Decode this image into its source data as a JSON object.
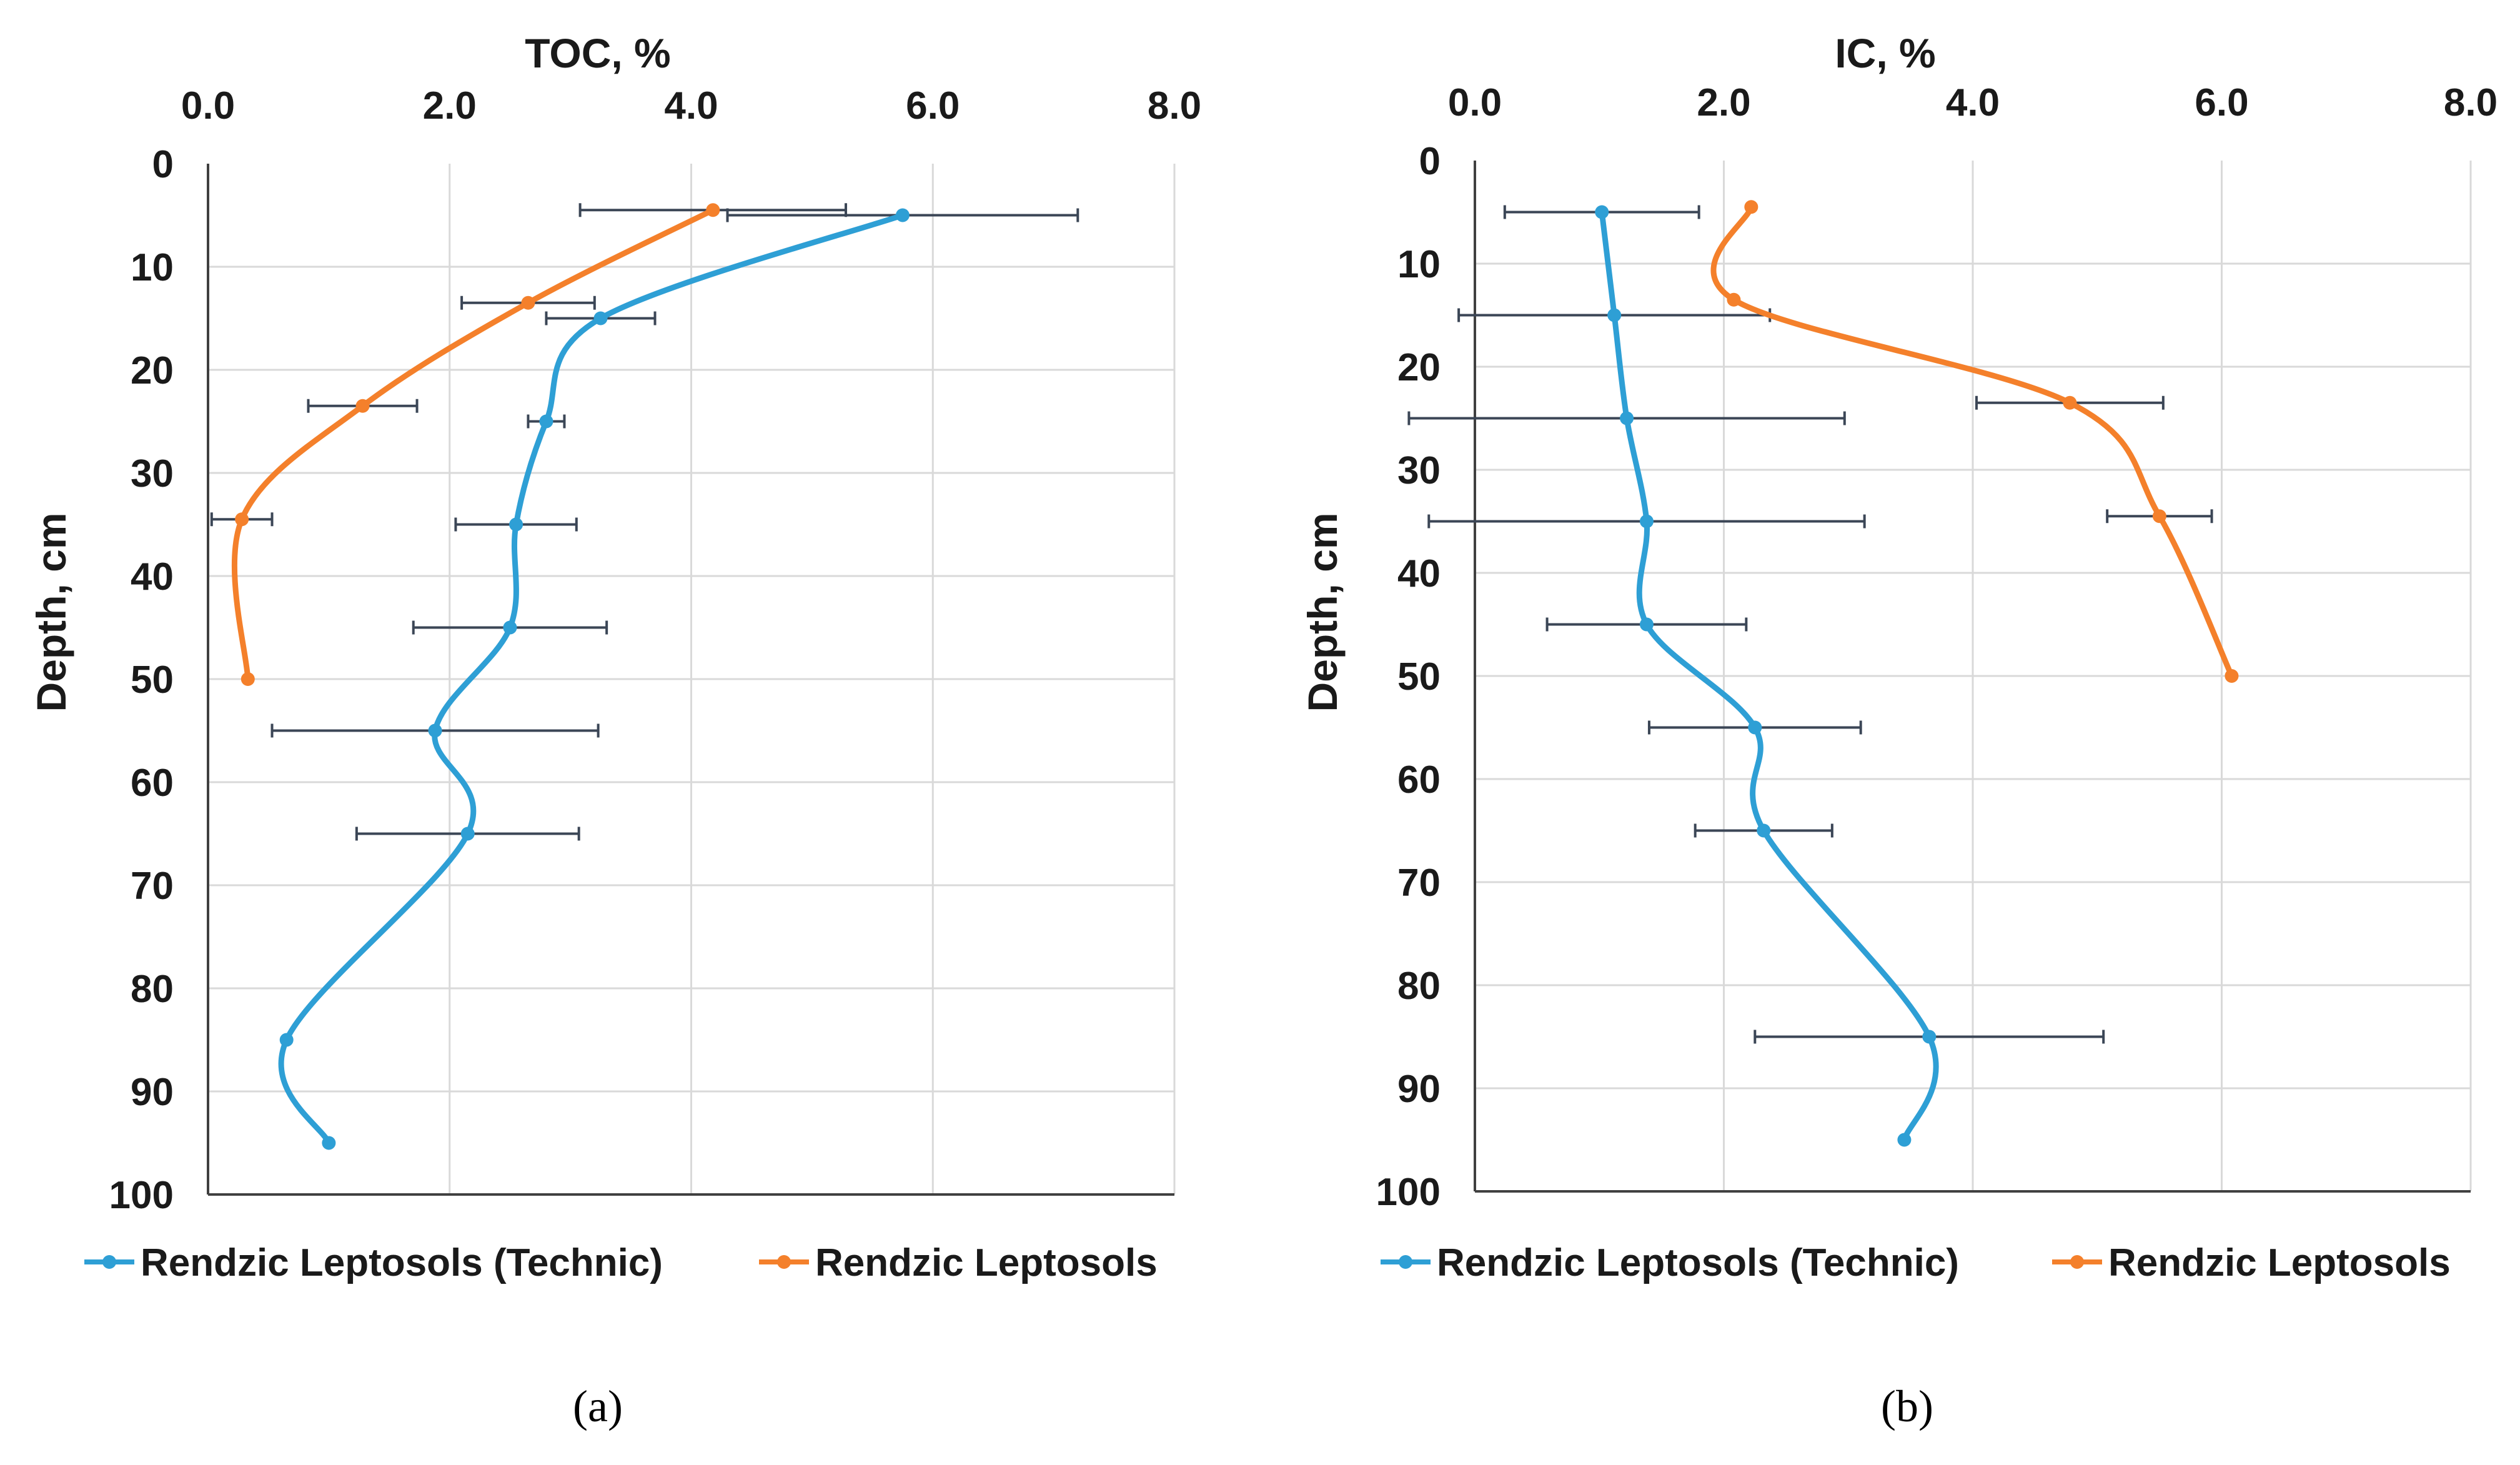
{
  "colors": {
    "technic": "#2e9fd5",
    "rendzic": "#f4802b",
    "error": "#3b4656"
  },
  "chart_data": [
    {
      "type": "line",
      "panel": "a",
      "caption": "(a)",
      "title": "TOC, %",
      "xlabel": "TOC, %",
      "ylabel": "Depth, cm",
      "xlim": [
        0,
        8
      ],
      "ylim": [
        0,
        100
      ],
      "x_ticks": [
        "0.0",
        "2.0",
        "4.0",
        "6.0",
        "8.0"
      ],
      "y_ticks": [
        "0",
        "10",
        "20",
        "30",
        "40",
        "50",
        "60",
        "70",
        "80",
        "90",
        "100"
      ],
      "grid": true,
      "legend": "bottom",
      "series": [
        {
          "name": "Rendzic Leptosols (Technic)",
          "color_key": "technic",
          "points": [
            {
              "x": 5.75,
              "depth": 5,
              "err": 1.45
            },
            {
              "x": 3.25,
              "depth": 15,
              "err": 0.45
            },
            {
              "x": 2.8,
              "depth": 25,
              "err": 0.15
            },
            {
              "x": 2.55,
              "depth": 35,
              "err": 0.5
            },
            {
              "x": 2.5,
              "depth": 45,
              "err": 0.8
            },
            {
              "x": 1.88,
              "depth": 55,
              "err": 1.35
            },
            {
              "x": 2.15,
              "depth": 65,
              "err": 0.92
            },
            {
              "x": 0.65,
              "depth": 85,
              "err": null
            },
            {
              "x": 1.0,
              "depth": 95,
              "err": null
            }
          ]
        },
        {
          "name": "Rendzic Leptosols",
          "color_key": "rendzic",
          "points": [
            {
              "x": 4.18,
              "depth": 4.5,
              "err": 1.1
            },
            {
              "x": 2.65,
              "depth": 13.5,
              "err": 0.55
            },
            {
              "x": 1.28,
              "depth": 23.5,
              "err": 0.45
            },
            {
              "x": 0.28,
              "depth": 34.5,
              "err": 0.25
            },
            {
              "x": 0.33,
              "depth": 50,
              "err": null
            }
          ]
        }
      ]
    },
    {
      "type": "line",
      "panel": "b",
      "caption": "(b)",
      "title": "IC, %",
      "xlabel": "IC, %",
      "ylabel": "Depth, cm",
      "xlim": [
        0,
        8
      ],
      "ylim": [
        0,
        100
      ],
      "x_ticks": [
        "0.0",
        "2.0",
        "4.0",
        "6.0",
        "8.0"
      ],
      "y_ticks": [
        "0",
        "10",
        "20",
        "30",
        "40",
        "50",
        "60",
        "70",
        "80",
        "90",
        "100"
      ],
      "grid": true,
      "legend": "bottom",
      "series": [
        {
          "name": "Rendzic Leptosols (Technic)",
          "color_key": "technic",
          "points": [
            {
              "x": 1.02,
              "depth": 5,
              "err": 0.78
            },
            {
              "x": 1.12,
              "depth": 15,
              "err": 1.25
            },
            {
              "x": 1.22,
              "depth": 25,
              "err": 1.75
            },
            {
              "x": 1.38,
              "depth": 35,
              "err": 1.75
            },
            {
              "x": 1.38,
              "depth": 45,
              "err": 0.8
            },
            {
              "x": 2.25,
              "depth": 55,
              "err": 0.85
            },
            {
              "x": 2.32,
              "depth": 65,
              "err": 0.55
            },
            {
              "x": 3.65,
              "depth": 85,
              "err": 1.4
            },
            {
              "x": 3.45,
              "depth": 95,
              "err": null
            }
          ]
        },
        {
          "name": "Rendzic Leptosols",
          "color_key": "rendzic",
          "points": [
            {
              "x": 2.22,
              "depth": 4.5,
              "err": null
            },
            {
              "x": 2.08,
              "depth": 13.5,
              "err": null
            },
            {
              "x": 4.78,
              "depth": 23.5,
              "err": 0.75
            },
            {
              "x": 5.5,
              "depth": 34.5,
              "err": 0.42
            },
            {
              "x": 6.08,
              "depth": 50,
              "err": null
            }
          ]
        }
      ]
    }
  ]
}
